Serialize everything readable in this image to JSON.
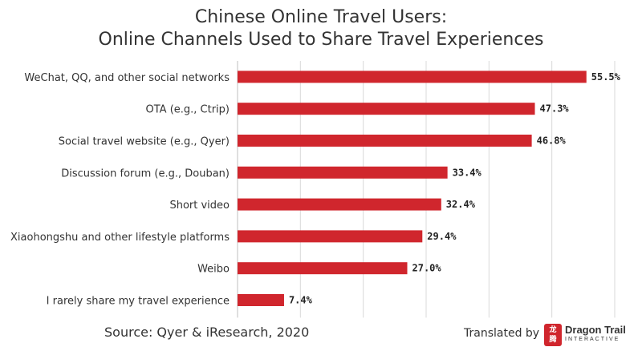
{
  "chart_data": {
    "type": "bar",
    "orientation": "horizontal",
    "title": "Chinese Online Travel Users:",
    "subtitle": "Online Channels Used to Share Travel Experiences",
    "categories": [
      "WeChat, QQ, and other social networks",
      "OTA (e.g., Ctrip)",
      "Social travel website (e.g., Qyer)",
      "Discussion forum (e.g., Douban)",
      "Short video",
      "Xiaohongshu and other lifestyle platforms",
      "Weibo",
      "I rarely share my travel experience"
    ],
    "values": [
      55.5,
      47.3,
      46.8,
      33.4,
      32.4,
      29.4,
      27.0,
      7.4
    ],
    "value_labels": [
      "55.5%",
      "47.3%",
      "46.8%",
      "33.4%",
      "32.4%",
      "29.4%",
      "27.0%",
      "7.4%"
    ],
    "xlim": [
      0,
      60
    ],
    "grid": true,
    "bar_color": "#d0262d"
  },
  "footer": {
    "source": "Source: Qyer & iResearch, 2020",
    "translated_by": "Translated by",
    "logo_name": "Dragon Trail",
    "logo_sub": "INTERACTIVE",
    "logo_glyph": "龙\n腾"
  }
}
